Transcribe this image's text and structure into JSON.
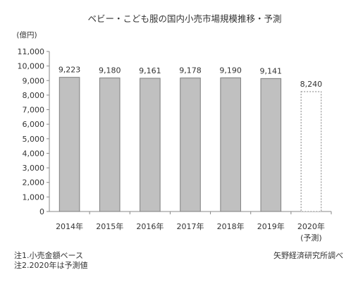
{
  "colors": {
    "bar_fill": "#c0c0c0",
    "bar_stroke": "#7f7f7f",
    "forecast_fill": "#ffffff",
    "forecast_stroke": "#7f7f7f"
  },
  "chart_data": {
    "type": "bar",
    "title": "ベビー・こども服の国内小売市場規模推移・予測",
    "ylabel": "(億円)",
    "xlabel": "",
    "ylim": [
      0,
      11000
    ],
    "ytick_step": 1000,
    "yticks": [
      "0",
      "1,000",
      "2,000",
      "3,000",
      "4,000",
      "5,000",
      "6,000",
      "7,000",
      "8,000",
      "9,000",
      "10,000",
      "11,000"
    ],
    "categories": [
      "2014年",
      "2015年",
      "2016年",
      "2017年",
      "2018年",
      "2019年",
      "2020年"
    ],
    "category_sublabels": [
      "",
      "",
      "",
      "",
      "",
      "",
      "(予測)"
    ],
    "values": [
      9223,
      9180,
      9161,
      9178,
      9190,
      9141,
      8240
    ],
    "data_labels": [
      "9,223",
      "9,180",
      "9,161",
      "9,178",
      "9,190",
      "9,141",
      "8,240"
    ],
    "forecast_flags": [
      false,
      false,
      false,
      false,
      false,
      false,
      true
    ],
    "grid": false,
    "legend": "none"
  },
  "notes": {
    "note1": "注1.小売金額ベース",
    "note2": "注2.2020年は予測値",
    "source": "矢野経済研究所調べ"
  }
}
